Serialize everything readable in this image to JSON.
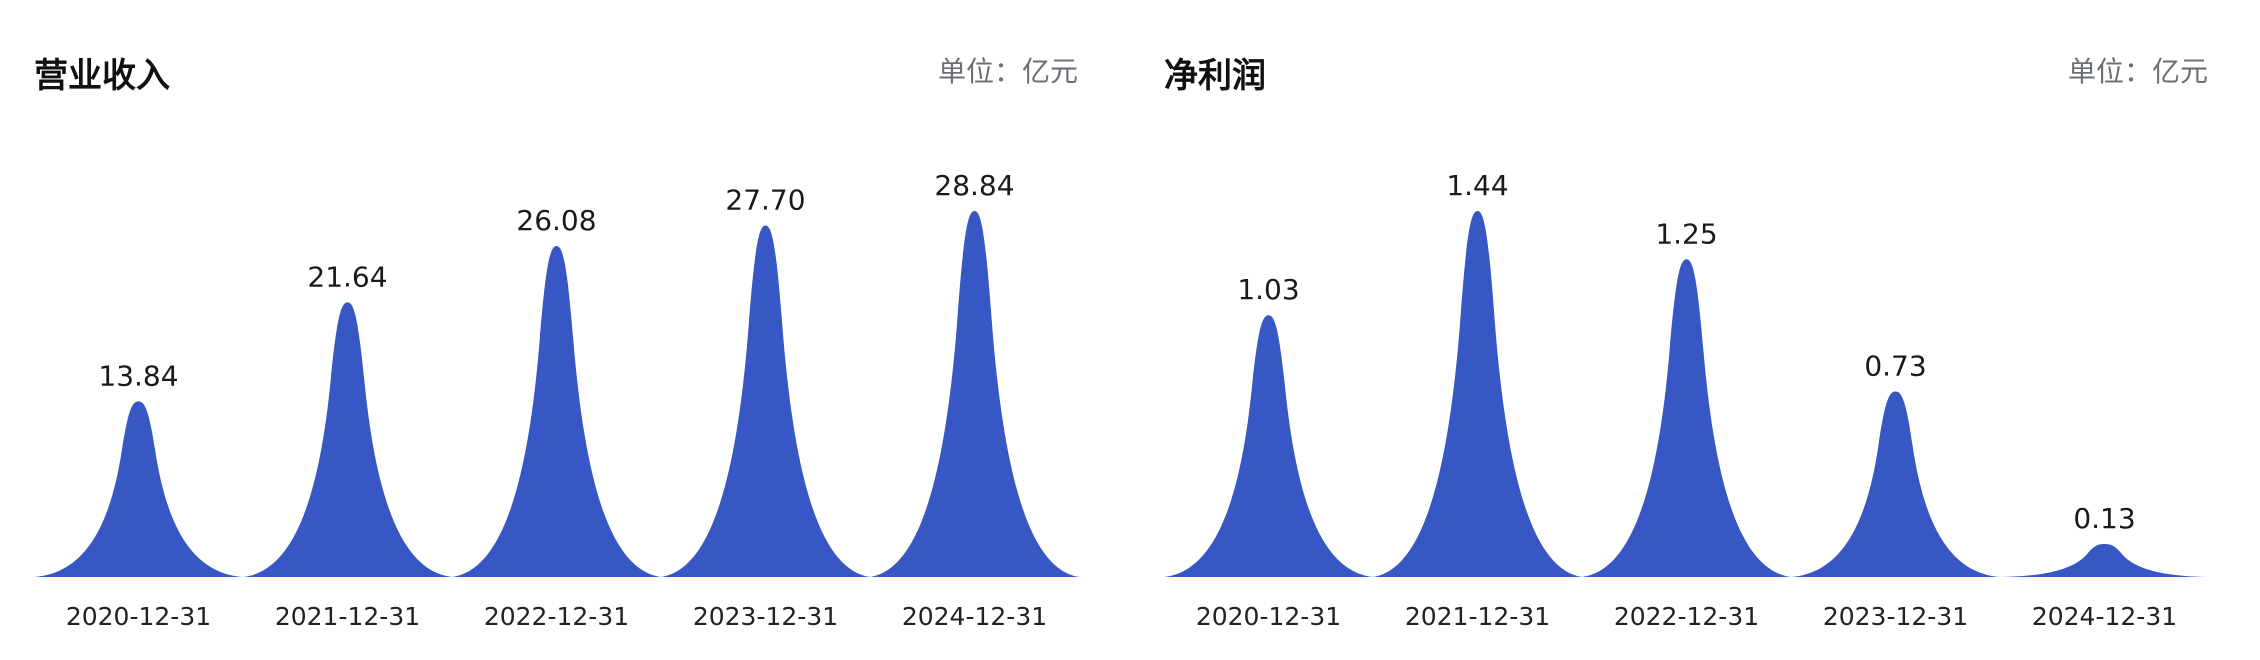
{
  "accent_color": "#3757c4",
  "chart_data": [
    {
      "type": "area",
      "title": "营业收入",
      "unit": "单位：亿元",
      "categories": [
        "2020-12-31",
        "2021-12-31",
        "2022-12-31",
        "2023-12-31",
        "2024-12-31"
      ],
      "values": [
        13.84,
        21.64,
        26.08,
        27.7,
        28.84
      ],
      "value_labels": [
        "13.84",
        "21.64",
        "26.08",
        "27.70",
        "28.84"
      ],
      "ylim": [
        0,
        28.84
      ],
      "grid": false,
      "color": "#3757c4"
    },
    {
      "type": "area",
      "title": "净利润",
      "unit": "单位：亿元",
      "categories": [
        "2020-12-31",
        "2021-12-31",
        "2022-12-31",
        "2023-12-31",
        "2024-12-31"
      ],
      "values": [
        1.03,
        1.44,
        1.25,
        0.73,
        0.13
      ],
      "value_labels": [
        "1.03",
        "1.44",
        "1.25",
        "0.73",
        "0.13"
      ],
      "ylim": [
        0,
        1.44
      ],
      "grid": false,
      "color": "#3757c4"
    }
  ]
}
